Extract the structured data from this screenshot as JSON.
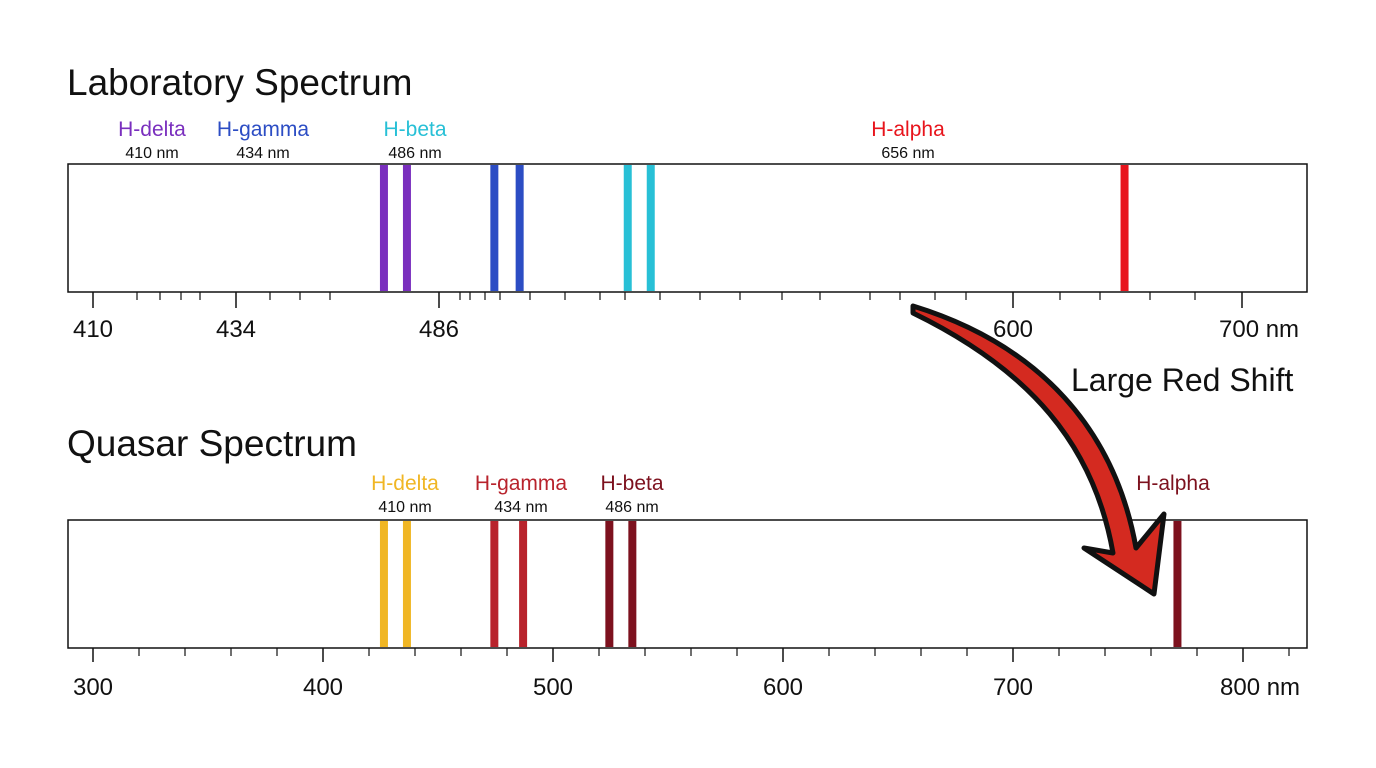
{
  "lab": {
    "title": "Laboratory Spectrum",
    "axis_ticks": [
      {
        "label": "410",
        "value": 410
      },
      {
        "label": "434",
        "value": 434
      },
      {
        "label": "486",
        "value": 486
      },
      {
        "label": "600",
        "value": 600
      },
      {
        "label": "700 nm",
        "value": 700
      }
    ],
    "line_groups": [
      {
        "name": "H-delta",
        "wavelength_label": "410 nm",
        "color": "#7a2fbe",
        "line_positions_nm": [
          426.5,
          436.5
        ]
      },
      {
        "name": "H-gamma",
        "wavelength_label": "434 nm",
        "color": "#2c4dc4",
        "line_positions_nm": [
          474.5,
          485.5
        ]
      },
      {
        "name": "H-beta",
        "wavelength_label": "486 nm",
        "color": "#28c0d6",
        "line_positions_nm": [
          532.5,
          542.5
        ]
      },
      {
        "name": "H-alpha",
        "wavelength_label": "656 nm",
        "color": "#e8141c",
        "line_positions_nm": [
          748.5
        ]
      }
    ]
  },
  "quasar": {
    "title": "Quasar Spectrum",
    "axis_ticks": [
      {
        "label": "300",
        "value": 300
      },
      {
        "label": "400",
        "value": 400
      },
      {
        "label": "500",
        "value": 500
      },
      {
        "label": "600",
        "value": 600
      },
      {
        "label": "700",
        "value": 700
      },
      {
        "label": "800 nm",
        "value": 800
      }
    ],
    "line_groups": [
      {
        "name": "H-delta",
        "wavelength_label": "410 nm",
        "color": "#f0b624",
        "line_positions_nm": [
          426.5,
          436.5
        ]
      },
      {
        "name": "H-gamma",
        "wavelength_label": "434 nm",
        "color": "#b8232c",
        "line_positions_nm": [
          474.5,
          487
        ]
      },
      {
        "name": "H-beta",
        "wavelength_label": "486 nm",
        "color": "#7d111e",
        "line_positions_nm": [
          524.5,
          534.5
        ]
      },
      {
        "name": "H-alpha",
        "wavelength_label": "",
        "color": "#7d111e",
        "line_positions_nm": [
          771.5
        ]
      }
    ]
  },
  "annotation": {
    "text": "Large Red Shift",
    "arrow_color": "#d42a20"
  }
}
